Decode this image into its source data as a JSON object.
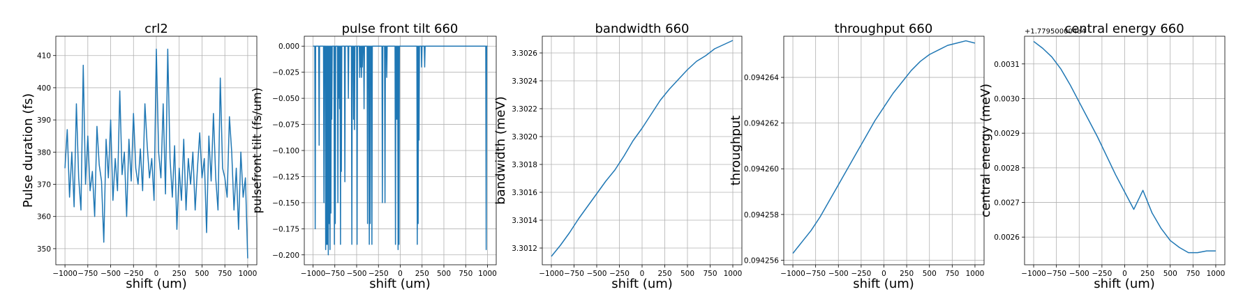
{
  "chart_data": [
    {
      "type": "line",
      "title": "crl2",
      "xlabel": "shift (um)",
      "ylabel": "Pulse duration (fs)",
      "xlim": [
        -1100,
        1100
      ],
      "ylim": [
        345,
        416
      ],
      "xticks": [
        -1000,
        -750,
        -500,
        -250,
        0,
        250,
        500,
        750,
        1000
      ],
      "yticks": [
        350,
        360,
        370,
        380,
        390,
        400,
        410
      ],
      "ytick_labels": [
        "350",
        "360",
        "370",
        "380",
        "390",
        "400",
        "410"
      ],
      "grid": true,
      "series": [
        {
          "name": "crl2",
          "x": [
            -1000,
            -975,
            -950,
            -925,
            -900,
            -875,
            -850,
            -825,
            -800,
            -775,
            -750,
            -725,
            -700,
            -675,
            -650,
            -625,
            -600,
            -575,
            -550,
            -525,
            -500,
            -475,
            -450,
            -425,
            -400,
            -375,
            -350,
            -325,
            -300,
            -275,
            -250,
            -225,
            -200,
            -175,
            -150,
            -125,
            -100,
            -75,
            -50,
            -25,
            0,
            25,
            50,
            75,
            100,
            125,
            150,
            175,
            200,
            225,
            250,
            275,
            300,
            325,
            350,
            375,
            400,
            425,
            450,
            475,
            500,
            525,
            550,
            575,
            600,
            625,
            650,
            675,
            700,
            725,
            750,
            775,
            800,
            825,
            850,
            875,
            900,
            925,
            950,
            975,
            1000
          ],
          "y": [
            375,
            387,
            366,
            380,
            363,
            395,
            372,
            362,
            407,
            370,
            385,
            368,
            374,
            360,
            388,
            376,
            371,
            352,
            384,
            372,
            390,
            365,
            378,
            368,
            399,
            373,
            380,
            360,
            384,
            371,
            392,
            375,
            370,
            381,
            368,
            395,
            382,
            372,
            378,
            365,
            412,
            380,
            372,
            395,
            367,
            412,
            378,
            366,
            382,
            356,
            375,
            365,
            384,
            362,
            378,
            370,
            380,
            362,
            375,
            386,
            372,
            378,
            355,
            385,
            371,
            392,
            372,
            362,
            403,
            375,
            372,
            366,
            391,
            380,
            362,
            375,
            356,
            380,
            366,
            372,
            347
          ]
        }
      ]
    },
    {
      "type": "line",
      "title": "pulse front tilt 660",
      "xlabel": "shift (um)",
      "ylabel": "pulsefront tilt (fs/um)",
      "xlim": [
        -1100,
        1100
      ],
      "ylim": [
        -0.2095,
        0.0095
      ],
      "xticks": [
        -1000,
        -750,
        -500,
        -250,
        0,
        250,
        500,
        750,
        1000
      ],
      "yticks": [
        0,
        -0.025,
        -0.05,
        -0.075,
        -0.1,
        -0.125,
        -0.15,
        -0.175,
        -0.2
      ],
      "ytick_labels": [
        "0.000",
        "−0.025",
        "−0.050",
        "−0.075",
        "−0.100",
        "−0.125",
        "−0.150",
        "−0.175",
        "−0.200"
      ],
      "grid": true,
      "series": [
        {
          "name": "pulse front tilt",
          "x": [
            -1000,
            -980,
            -975,
            -970,
            -960,
            -935,
            -930,
            -925,
            -900,
            -880,
            -875,
            -870,
            -860,
            -855,
            -850,
            -845,
            -840,
            -835,
            -830,
            -825,
            -820,
            -815,
            -810,
            -805,
            -800,
            -795,
            -790,
            -785,
            -780,
            -760,
            -755,
            -750,
            -745,
            -740,
            -720,
            -715,
            -710,
            -705,
            -700,
            -695,
            -690,
            -685,
            -680,
            -675,
            -670,
            -640,
            -635,
            -630,
            -600,
            -595,
            -590,
            -560,
            -555,
            -550,
            -540,
            -535,
            -530,
            -525,
            -520,
            -500,
            -495,
            -490,
            -470,
            -465,
            -460,
            -455,
            -450,
            -445,
            -440,
            -435,
            -430,
            -420,
            -415,
            -410,
            -380,
            -375,
            -370,
            -365,
            -360,
            -355,
            -350,
            -345,
            -340,
            -335,
            -330,
            -325,
            -320,
            -210,
            -205,
            -200,
            -180,
            -175,
            -170,
            -160,
            -155,
            -150,
            -60,
            -55,
            -50,
            -45,
            -40,
            -35,
            -30,
            -25,
            -20,
            -15,
            -10,
            190,
            195,
            200,
            205,
            210,
            215,
            220,
            240,
            245,
            250,
            275,
            280,
            285,
            980,
            985,
            990,
            1000
          ],
          "y": [
            0,
            0,
            -0.175,
            0,
            0,
            0,
            -0.095,
            0,
            0,
            0,
            -0.15,
            0,
            0,
            -0.195,
            0,
            -0.19,
            0,
            -0.19,
            0,
            -0.2,
            0,
            -0.17,
            0,
            -0.195,
            0,
            -0.16,
            0,
            -0.07,
            0,
            0,
            -0.19,
            0,
            -0.17,
            0,
            0,
            -0.15,
            0,
            -0.05,
            0,
            -0.06,
            0,
            -0.19,
            0,
            -0.12,
            0,
            0,
            -0.13,
            0,
            0,
            -0.05,
            0,
            0,
            -0.19,
            0,
            0,
            -0.07,
            0,
            -0.08,
            0,
            0,
            -0.19,
            0,
            0,
            -0.03,
            0,
            -0.02,
            0,
            -0.03,
            0,
            -0.02,
            0,
            0,
            -0.06,
            0,
            0,
            -0.17,
            0,
            -0.04,
            0,
            -0.19,
            0,
            -0.17,
            0,
            -0.03,
            0,
            -0.19,
            0,
            0,
            -0.15,
            0,
            0,
            -0.15,
            0,
            0,
            -0.03,
            0,
            0,
            -0.19,
            0,
            -0.07,
            0,
            -0.07,
            0,
            -0.195,
            0,
            -0.19,
            0,
            0,
            -0.19,
            0,
            -0.17,
            0,
            -0.09,
            0,
            0,
            -0.02,
            0,
            0,
            -0.02,
            0,
            0,
            -0.195,
            0,
            0
          ]
        }
      ]
    },
    {
      "type": "line",
      "title": "bandwidth 660",
      "xlabel": "shift (um)",
      "ylabel": "bandwidth (meV)",
      "xlim": [
        -1100,
        1100
      ],
      "ylim": [
        3.30108,
        3.30272
      ],
      "xticks": [
        -1000,
        -750,
        -500,
        -250,
        0,
        250,
        500,
        750,
        1000
      ],
      "yticks": [
        3.3012,
        3.3014,
        3.3016,
        3.3018,
        3.302,
        3.3022,
        3.3024,
        3.3026
      ],
      "ytick_labels": [
        "3.3012",
        "3.3014",
        "3.3016",
        "3.3018",
        "3.3020",
        "3.3022",
        "3.3024",
        "3.3026"
      ],
      "grid": true,
      "series": [
        {
          "name": "bandwidth",
          "x": [
            -1000,
            -900,
            -800,
            -700,
            -600,
            -500,
            -400,
            -300,
            -200,
            -100,
            0,
            100,
            200,
            300,
            400,
            500,
            600,
            700,
            800,
            900,
            1000
          ],
          "y": [
            3.30114,
            3.30122,
            3.30131,
            3.30141,
            3.3015,
            3.30159,
            3.30168,
            3.30176,
            3.30186,
            3.30197,
            3.30206,
            3.30216,
            3.30226,
            3.30234,
            3.30241,
            3.30248,
            3.30254,
            3.30258,
            3.30263,
            3.30266,
            3.30269
          ]
        }
      ]
    },
    {
      "type": "line",
      "title": "throughput 660",
      "xlabel": "shift (um)",
      "ylabel": "throughput",
      "xlim": [
        -1100,
        1100
      ],
      "ylim": [
        0.0942558,
        0.0942658
      ],
      "xticks": [
        -1000,
        -750,
        -500,
        -250,
        0,
        250,
        500,
        750,
        1000
      ],
      "yticks": [
        0.094256,
        0.094258,
        0.09426,
        0.094262,
        0.094264
      ],
      "ytick_labels": [
        "0.094256",
        "0.094258",
        "0.094260",
        "0.094262",
        "0.094264"
      ],
      "grid": true,
      "series": [
        {
          "name": "throughput",
          "x": [
            -1000,
            -900,
            -800,
            -700,
            -600,
            -500,
            -400,
            -300,
            -200,
            -100,
            0,
            100,
            200,
            300,
            400,
            500,
            600,
            700,
            800,
            900,
            1000
          ],
          "y": [
            0.0942563,
            0.0942568,
            0.0942573,
            0.0942579,
            0.0942586,
            0.0942593,
            0.09426,
            0.0942607,
            0.0942614,
            0.0942621,
            0.0942627,
            0.0942633,
            0.0942638,
            0.0942643,
            0.0942647,
            0.094265,
            0.0942652,
            0.0942654,
            0.0942655,
            0.0942656,
            0.0942655
          ]
        }
      ]
    },
    {
      "type": "line",
      "title": "central energy 660",
      "xlabel": "shift (um)",
      "ylabel": "central energy (meV)",
      "offset_text": "+1.779500004e4",
      "xlim": [
        -1100,
        1100
      ],
      "ylim": [
        0.00252,
        0.00318
      ],
      "xticks": [
        -1000,
        -750,
        -500,
        -250,
        0,
        250,
        500,
        750,
        1000
      ],
      "yticks": [
        0.0026,
        0.0027,
        0.0028,
        0.0029,
        0.003,
        0.0031
      ],
      "ytick_labels": [
        "0.0026",
        "0.0027",
        "0.0028",
        "0.0029",
        "0.0030",
        "0.0031"
      ],
      "grid": true,
      "series": [
        {
          "name": "central energy",
          "x": [
            -1000,
            -900,
            -800,
            -700,
            -600,
            -500,
            -400,
            -300,
            -200,
            -100,
            0,
            100,
            200,
            300,
            400,
            500,
            600,
            700,
            800,
            900,
            1000
          ],
          "y": [
            0.003165,
            0.003145,
            0.00312,
            0.003085,
            0.00304,
            0.00299,
            0.00294,
            0.00289,
            0.002835,
            0.00278,
            0.00273,
            0.00268,
            0.002735,
            0.00267,
            0.002625,
            0.00259,
            0.00257,
            0.002555,
            0.002555,
            0.00256,
            0.00256
          ]
        }
      ]
    }
  ]
}
